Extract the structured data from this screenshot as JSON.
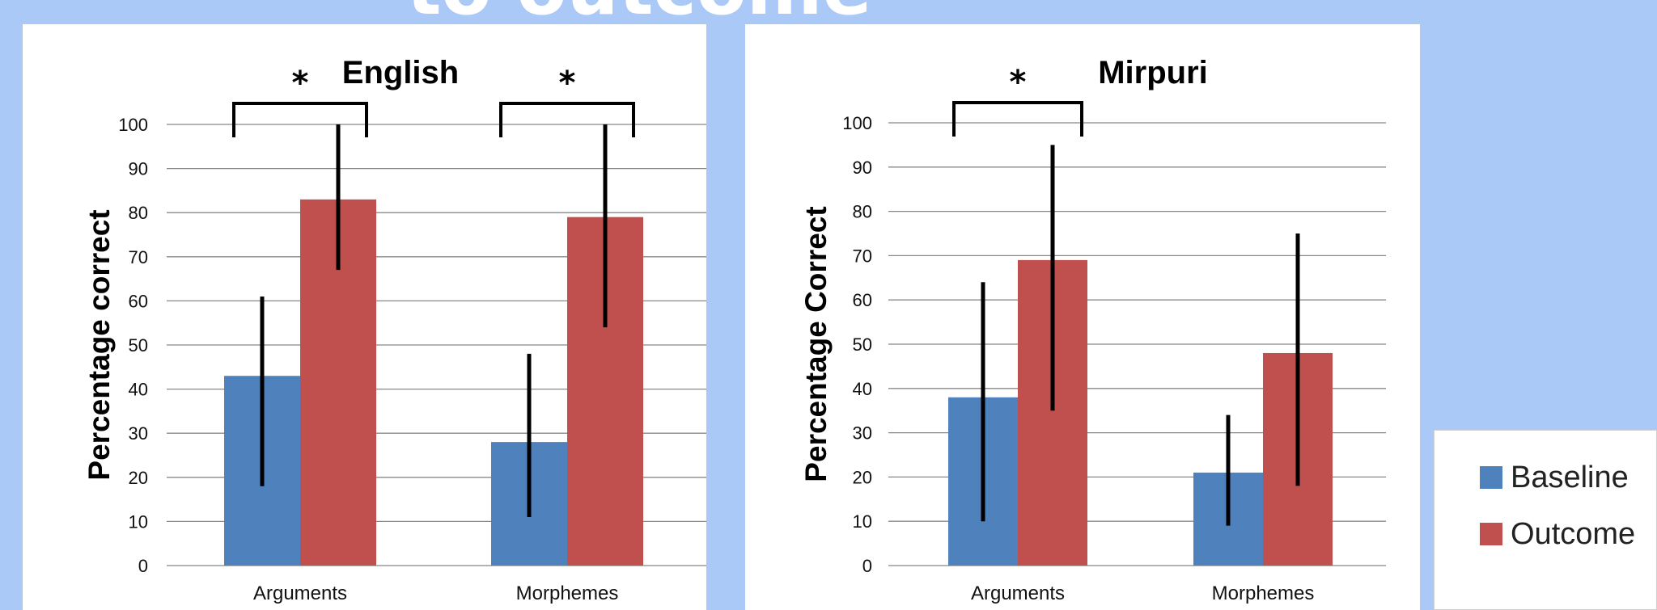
{
  "slide": {
    "title": "to outcome"
  },
  "colors": {
    "baseline": "#4f81bd",
    "outcome": "#c0504d",
    "error_bar": "#000000",
    "grid": "#888888"
  },
  "legend": {
    "items": [
      "Baseline",
      "Outcome"
    ]
  },
  "chart_data": [
    {
      "type": "bar",
      "title": "English",
      "ylabel": "Percentage correct",
      "xlabel": "",
      "categories": [
        "Arguments",
        "Morphemes"
      ],
      "ylim": [
        0,
        100
      ],
      "yticks": [
        0,
        10,
        20,
        30,
        40,
        50,
        60,
        70,
        80,
        90,
        100
      ],
      "grid": true,
      "series": [
        {
          "name": "Baseline",
          "values": [
            43,
            28
          ],
          "error_low": [
            18,
            11
          ],
          "error_high": [
            61,
            48
          ]
        },
        {
          "name": "Outcome",
          "values": [
            83,
            79
          ],
          "error_low": [
            67,
            54
          ],
          "error_high": [
            100,
            100
          ]
        }
      ],
      "significance": [
        {
          "category": "Arguments",
          "label": "*"
        },
        {
          "category": "Morphemes",
          "label": "*"
        }
      ]
    },
    {
      "type": "bar",
      "title": "Mirpuri",
      "ylabel": "Percentage Correct",
      "xlabel": "",
      "categories": [
        "Arguments",
        "Morphemes"
      ],
      "ylim": [
        0,
        100
      ],
      "yticks": [
        0,
        10,
        20,
        30,
        40,
        50,
        60,
        70,
        80,
        90,
        100
      ],
      "grid": true,
      "series": [
        {
          "name": "Baseline",
          "values": [
            38,
            21
          ],
          "error_low": [
            10,
            9
          ],
          "error_high": [
            64,
            34
          ]
        },
        {
          "name": "Outcome",
          "values": [
            69,
            48
          ],
          "error_low": [
            35,
            18
          ],
          "error_high": [
            95,
            75
          ]
        }
      ],
      "significance": [
        {
          "category": "Arguments",
          "label": "*"
        }
      ]
    }
  ]
}
